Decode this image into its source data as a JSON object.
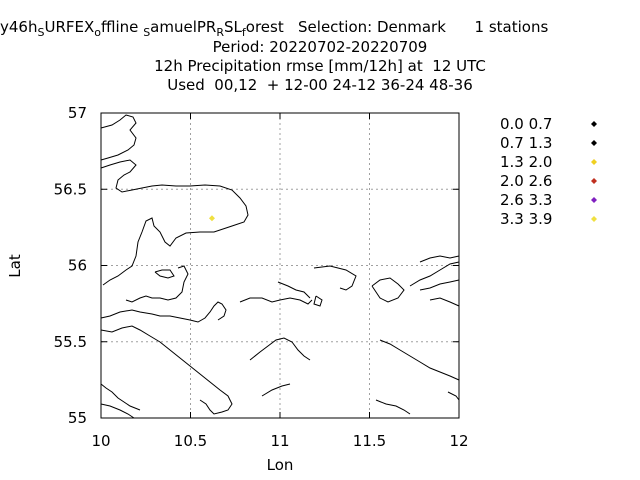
{
  "header": {
    "title_parts": [
      {
        "text": "y46h",
        "sub": false
      },
      {
        "text": "S",
        "sub": true
      },
      {
        "text": "URFEX",
        "sub": false
      },
      {
        "text": "o",
        "sub": true
      },
      {
        "text": "ffline ",
        "sub": false
      },
      {
        "text": "S",
        "sub": true
      },
      {
        "text": "amuelPR",
        "sub": false
      },
      {
        "text": "R",
        "sub": true
      },
      {
        "text": "SL",
        "sub": false
      },
      {
        "text": "f",
        "sub": true
      },
      {
        "text": "orest   Selection: Denmark      1 stations",
        "sub": false
      }
    ],
    "period": "Period: 20220702-20220709",
    "subtitle": "12h Precipitation rmse [mm/12h] at  12 UTC",
    "used": "Used  00,12  + 12-00 24-12 36-24 48-36"
  },
  "chart_data": {
    "type": "scatter",
    "xlabel": "Lon",
    "ylabel": "Lat",
    "xlim": [
      10,
      12
    ],
    "ylim": [
      55,
      57
    ],
    "x_ticks": [
      "10",
      "10.5",
      "11",
      "11.5",
      "12"
    ],
    "y_ticks": [
      "55",
      "55.5",
      "56",
      "56.5",
      "57"
    ],
    "grid": true,
    "legend_placement": "right",
    "legend": [
      {
        "label": "0.0 0.7",
        "color": "#000000"
      },
      {
        "label": "0.7 1.3",
        "color": "#000000"
      },
      {
        "label": "1.3 2.0",
        "color": "#f0d020"
      },
      {
        "label": "2.0 2.6",
        "color": "#c03020"
      },
      {
        "label": "2.6 3.3",
        "color": "#8020c0"
      },
      {
        "label": "3.3 3.9",
        "color": "#f0e040"
      }
    ],
    "points": [
      {
        "lon": 10.62,
        "lat": 56.31,
        "color": "#f0e040"
      }
    ]
  }
}
